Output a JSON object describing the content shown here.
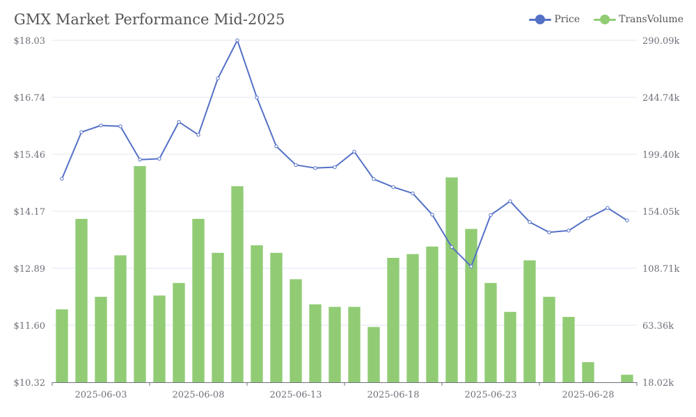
{
  "chart_data": {
    "type": "bar+line",
    "title": "GMX Market Performance Mid-2025",
    "legend": {
      "position": "top-right",
      "items": [
        "Price",
        "TransVolume"
      ]
    },
    "colors": {
      "price": "#5470c6",
      "volume": "#91cc75",
      "axis": "#6e7079",
      "grid": "#e0e6f1",
      "title": "#555555"
    },
    "x": [
      "2025-06-01",
      "2025-06-02",
      "2025-06-03",
      "2025-06-04",
      "2025-06-05",
      "2025-06-06",
      "2025-06-07",
      "2025-06-08",
      "2025-06-09",
      "2025-06-10",
      "2025-06-11",
      "2025-06-12",
      "2025-06-13",
      "2025-06-14",
      "2025-06-15",
      "2025-06-16",
      "2025-06-17",
      "2025-06-18",
      "2025-06-19",
      "2025-06-20",
      "2025-06-21",
      "2025-06-22",
      "2025-06-23",
      "2025-06-24",
      "2025-06-25",
      "2025-06-26",
      "2025-06-27",
      "2025-06-28",
      "2025-06-29",
      "2025-06-30"
    ],
    "x_tick_labels": [
      "2025-06-03",
      "2025-06-08",
      "2025-06-13",
      "2025-06-18",
      "2025-06-23",
      "2025-06-28"
    ],
    "y_left": {
      "min": 10.32,
      "max": 18.03,
      "ticks": [
        "$10.32",
        "$11.60",
        "$12.89",
        "$14.17",
        "$15.46",
        "$16.74",
        "$18.03"
      ]
    },
    "y_right": {
      "min": 18.02,
      "max": 290.09,
      "ticks": [
        "18.02k",
        "63.36k",
        "108.71k",
        "154.05k",
        "199.40k",
        "244.74k",
        "290.09k"
      ]
    },
    "series": [
      {
        "name": "Price",
        "type": "line",
        "axis": "left",
        "values": [
          14.91,
          15.96,
          16.11,
          16.09,
          15.34,
          15.36,
          16.19,
          15.9,
          17.17,
          18.03,
          16.74,
          15.64,
          15.22,
          15.15,
          15.17,
          15.52,
          14.9,
          14.72,
          14.58,
          14.1,
          13.37,
          12.93,
          14.09,
          14.4,
          13.93,
          13.7,
          13.74,
          14.02,
          14.25,
          13.97
        ]
      },
      {
        "name": "TransVolume",
        "type": "bar",
        "axis": "right",
        "values": [
          76,
          148,
          86,
          119,
          190,
          87,
          97,
          148,
          121,
          174,
          127,
          121,
          100,
          80,
          78,
          78,
          62,
          117,
          120,
          126,
          181,
          140,
          97,
          74,
          115,
          86,
          70,
          34,
          null,
          24
        ]
      }
    ]
  }
}
